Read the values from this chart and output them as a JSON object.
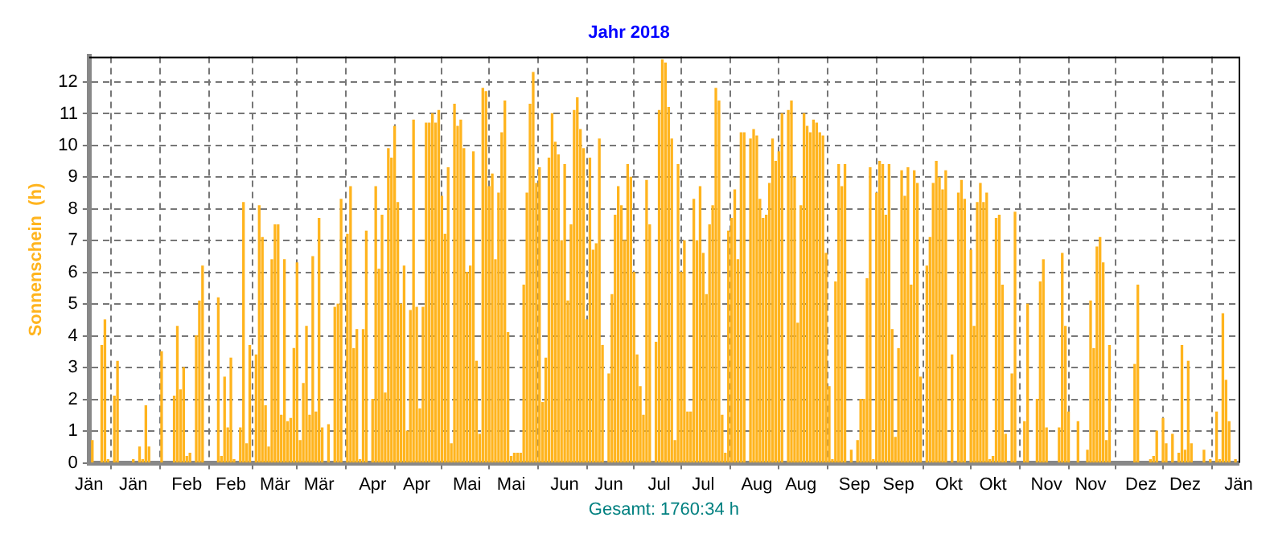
{
  "chart_data": {
    "type": "bar",
    "title": "Jahr 2018",
    "ylabel": "Sonnenschein  (h)",
    "annotations": [
      "Gesamt: 1760:34 h"
    ],
    "x": [
      "2018-01-02",
      "2018-01-05",
      "2018-01-06",
      "2018-01-07",
      "2018-01-09",
      "2018-01-10",
      "2018-01-15",
      "2018-01-17",
      "2018-01-18",
      "2018-01-19",
      "2018-01-20",
      "2018-01-24",
      "2018-01-28",
      "2018-01-29",
      "2018-01-30",
      "2018-01-31",
      "2018-02-01",
      "2018-02-02",
      "2018-02-04",
      "2018-02-05",
      "2018-02-06",
      "2018-02-11",
      "2018-02-12",
      "2018-02-13",
      "2018-02-14",
      "2018-02-15",
      "2018-02-16",
      "2018-02-18",
      "2018-02-19",
      "2018-02-20",
      "2018-02-21",
      "2018-02-23",
      "2018-02-24",
      "2018-02-25",
      "2018-02-26",
      "2018-02-27",
      "2018-02-28",
      "2018-03-01",
      "2018-03-02",
      "2018-03-03",
      "2018-03-04",
      "2018-03-05",
      "2018-03-06",
      "2018-03-07",
      "2018-03-08",
      "2018-03-09",
      "2018-03-10",
      "2018-03-11",
      "2018-03-12",
      "2018-03-13",
      "2018-03-14",
      "2018-03-15",
      "2018-03-16",
      "2018-03-18",
      "2018-03-20",
      "2018-03-21",
      "2018-03-22",
      "2018-03-24",
      "2018-03-25",
      "2018-03-26",
      "2018-03-27",
      "2018-03-28",
      "2018-03-29",
      "2018-03-30",
      "2018-04-01",
      "2018-04-02",
      "2018-04-03",
      "2018-04-04",
      "2018-04-05",
      "2018-04-06",
      "2018-04-07",
      "2018-04-08",
      "2018-04-09",
      "2018-04-10",
      "2018-04-11",
      "2018-04-12",
      "2018-04-13",
      "2018-04-14",
      "2018-04-15",
      "2018-04-16",
      "2018-04-17",
      "2018-04-18",
      "2018-04-19",
      "2018-04-20",
      "2018-04-21",
      "2018-04-22",
      "2018-04-23",
      "2018-04-24",
      "2018-04-25",
      "2018-04-26",
      "2018-04-27",
      "2018-04-28",
      "2018-04-29",
      "2018-04-30",
      "2018-05-01",
      "2018-05-02",
      "2018-05-03",
      "2018-05-04",
      "2018-05-05",
      "2018-05-06",
      "2018-05-07",
      "2018-05-08",
      "2018-05-09",
      "2018-05-10",
      "2018-05-11",
      "2018-05-12",
      "2018-05-13",
      "2018-05-14",
      "2018-05-15",
      "2018-05-16",
      "2018-05-17",
      "2018-05-18",
      "2018-05-19",
      "2018-05-20",
      "2018-05-21",
      "2018-05-22",
      "2018-05-23",
      "2018-05-24",
      "2018-05-25",
      "2018-05-26",
      "2018-05-27",
      "2018-05-28",
      "2018-05-29",
      "2018-05-30",
      "2018-05-31",
      "2018-06-01",
      "2018-06-02",
      "2018-06-03",
      "2018-06-04",
      "2018-06-05",
      "2018-06-06",
      "2018-06-07",
      "2018-06-08",
      "2018-06-09",
      "2018-06-10",
      "2018-06-11",
      "2018-06-12",
      "2018-06-13",
      "2018-06-15",
      "2018-06-16",
      "2018-06-17",
      "2018-06-18",
      "2018-06-19",
      "2018-06-20",
      "2018-06-21",
      "2018-06-22",
      "2018-06-23",
      "2018-06-24",
      "2018-06-25",
      "2018-06-26",
      "2018-06-27",
      "2018-06-28",
      "2018-06-30",
      "2018-07-01",
      "2018-07-02",
      "2018-07-03",
      "2018-07-04",
      "2018-07-05",
      "2018-07-06",
      "2018-07-07",
      "2018-07-08",
      "2018-07-09",
      "2018-07-10",
      "2018-07-11",
      "2018-07-12",
      "2018-07-13",
      "2018-07-14",
      "2018-07-15",
      "2018-07-16",
      "2018-07-17",
      "2018-07-18",
      "2018-07-19",
      "2018-07-20",
      "2018-07-21",
      "2018-07-22",
      "2018-07-23",
      "2018-07-24",
      "2018-07-25",
      "2018-07-26",
      "2018-07-27",
      "2018-07-28",
      "2018-07-30",
      "2018-07-31",
      "2018-08-01",
      "2018-08-02",
      "2018-08-03",
      "2018-08-04",
      "2018-08-05",
      "2018-08-06",
      "2018-08-07",
      "2018-08-08",
      "2018-08-09",
      "2018-08-11",
      "2018-08-12",
      "2018-08-13",
      "2018-08-14",
      "2018-08-15",
      "2018-08-16",
      "2018-08-17",
      "2018-08-18",
      "2018-08-19",
      "2018-08-20",
      "2018-08-21",
      "2018-08-22",
      "2018-08-23",
      "2018-08-24",
      "2018-08-25",
      "2018-08-26",
      "2018-08-27",
      "2018-08-28",
      "2018-08-29",
      "2018-08-31",
      "2018-09-02",
      "2018-09-03",
      "2018-09-04",
      "2018-09-05",
      "2018-09-06",
      "2018-09-07",
      "2018-09-08",
      "2018-09-09",
      "2018-09-10",
      "2018-09-11",
      "2018-09-12",
      "2018-09-13",
      "2018-09-14",
      "2018-09-15",
      "2018-09-16",
      "2018-09-17",
      "2018-09-18",
      "2018-09-19",
      "2018-09-20",
      "2018-09-21",
      "2018-09-22",
      "2018-09-24",
      "2018-09-25",
      "2018-09-26",
      "2018-09-27",
      "2018-09-28",
      "2018-09-29",
      "2018-09-30",
      "2018-10-02",
      "2018-10-04",
      "2018-10-05",
      "2018-10-06",
      "2018-10-08",
      "2018-10-09",
      "2018-10-10",
      "2018-10-11",
      "2018-10-12",
      "2018-10-13",
      "2018-10-14",
      "2018-10-15",
      "2018-10-16",
      "2018-10-17",
      "2018-10-18",
      "2018-10-19",
      "2018-10-21",
      "2018-10-22",
      "2018-10-25",
      "2018-10-26",
      "2018-10-29",
      "2018-10-30",
      "2018-10-31",
      "2018-11-01",
      "2018-11-05",
      "2018-11-06",
      "2018-11-07",
      "2018-11-08",
      "2018-11-11",
      "2018-11-14",
      "2018-11-15",
      "2018-11-16",
      "2018-11-17",
      "2018-11-18",
      "2018-11-19",
      "2018-11-20",
      "2018-11-21",
      "2018-11-29",
      "2018-11-30",
      "2018-12-04",
      "2018-12-05",
      "2018-12-06",
      "2018-12-08",
      "2018-12-09",
      "2018-12-11",
      "2018-12-13",
      "2018-12-14",
      "2018-12-15",
      "2018-12-16",
      "2018-12-17",
      "2018-12-21",
      "2018-12-23",
      "2018-12-25",
      "2018-12-26",
      "2018-12-27",
      "2018-12-28",
      "2018-12-29",
      "2018-12-31"
    ],
    "values": [
      0.7,
      3.7,
      4.5,
      0.1,
      2.1,
      3.2,
      0.1,
      0.5,
      0.1,
      1.8,
      0.5,
      3.5,
      2.1,
      4.3,
      2.3,
      3.0,
      0.2,
      0.3,
      4.0,
      5.1,
      6.2,
      5.2,
      0.2,
      2.7,
      1.1,
      3.3,
      0.1,
      1.1,
      8.2,
      0.6,
      3.7,
      3.4,
      8.1,
      7.1,
      1.8,
      0.5,
      6.4,
      7.5,
      7.5,
      1.5,
      6.4,
      1.3,
      1.4,
      3.6,
      6.3,
      0.7,
      2.5,
      4.3,
      1.5,
      6.5,
      1.6,
      7.7,
      1.1,
      1.2,
      4.9,
      5.0,
      8.3,
      7.2,
      8.7,
      3.6,
      4.2,
      0.1,
      4.2,
      7.3,
      2.0,
      8.7,
      6.1,
      7.8,
      2.2,
      9.9,
      9.6,
      10.6,
      8.2,
      5.0,
      6.2,
      1.0,
      4.8,
      10.8,
      4.9,
      1.7,
      4.9,
      10.7,
      10.7,
      11.0,
      10.7,
      11.1,
      8.4,
      7.2,
      9.3,
      0.6,
      11.3,
      10.6,
      10.8,
      9.9,
      6.0,
      6.2,
      9.8,
      3.2,
      0.9,
      11.8,
      11.7,
      8.7,
      9.1,
      6.4,
      8.5,
      10.4,
      11.4,
      4.1,
      0.2,
      0.3,
      0.3,
      0.3,
      5.6,
      8.5,
      11.3,
      12.3,
      8.8,
      9.3,
      1.9,
      3.3,
      9.6,
      11.0,
      10.1,
      9.7,
      7.0,
      9.4,
      5.1,
      7.5,
      11.1,
      11.5,
      10.5,
      9.9,
      4.5,
      9.6,
      6.7,
      6.9,
      10.2,
      3.7,
      2.8,
      5.3,
      7.8,
      8.7,
      8.1,
      7.0,
      9.4,
      9.0,
      6.0,
      3.4,
      2.4,
      1.5,
      8.9,
      7.5,
      3.8,
      11.1,
      12.7,
      12.6,
      11.2,
      10.2,
      0.7,
      9.4,
      6.0,
      7.0,
      1.6,
      1.6,
      8.3,
      7.0,
      8.7,
      6.6,
      5.3,
      7.5,
      8.1,
      11.8,
      11.4,
      1.5,
      0.3,
      7.3,
      7.7,
      8.6,
      6.4,
      10.4,
      10.4,
      10.2,
      10.5,
      10.3,
      8.3,
      7.7,
      7.8,
      8.8,
      10.2,
      9.5,
      9.8,
      11.0,
      11.1,
      11.4,
      9.0,
      4.4,
      8.1,
      11.0,
      10.6,
      10.4,
      10.8,
      10.7,
      10.4,
      10.3,
      6.6,
      2.4,
      0.1,
      5.7,
      9.4,
      8.7,
      9.4,
      0.4,
      0.7,
      2.0,
      2.0,
      5.8,
      9.3,
      0.1,
      8.5,
      9.5,
      9.4,
      7.8,
      9.4,
      4.2,
      0.8,
      3.6,
      9.2,
      8.4,
      9.3,
      5.6,
      9.2,
      8.8,
      2.7,
      6.2,
      7.1,
      8.8,
      9.5,
      9.0,
      8.6,
      9.2,
      3.4,
      8.5,
      8.9,
      8.3,
      6.7,
      4.3,
      8.2,
      8.8,
      8.2,
      8.5,
      0.1,
      0.2,
      7.7,
      7.8,
      5.6,
      0.9,
      2.8,
      7.9,
      1.3,
      5.0,
      2.0,
      5.7,
      6.4,
      1.1,
      1.1,
      6.6,
      4.3,
      1.6,
      1.3,
      0.4,
      5.1,
      3.6,
      6.8,
      7.1,
      6.3,
      0.7,
      3.7,
      3.1,
      5.6,
      0.1,
      0.2,
      1.0,
      1.4,
      0.6,
      0.9,
      0.3,
      3.7,
      0.4,
      3.2,
      0.6,
      0.4,
      0.1,
      1.6,
      0.1,
      4.7,
      2.6,
      1.3,
      0.1
    ],
    "color": "#ffb41e",
    "xlim": [
      "2018-01-01",
      "2019-01-01"
    ],
    "xticks": [
      {
        "value": "2018-01-01",
        "label": "Jän"
      },
      {
        "value": "2018-01-15",
        "label": "Jän"
      },
      {
        "value": "2018-02-01",
        "label": "Feb"
      },
      {
        "value": "2018-02-15",
        "label": "Feb"
      },
      {
        "value": "2018-03-01",
        "label": "Mär"
      },
      {
        "value": "2018-03-15",
        "label": "Mär"
      },
      {
        "value": "2018-04-01",
        "label": "Apr"
      },
      {
        "value": "2018-04-15",
        "label": "Apr"
      },
      {
        "value": "2018-05-01",
        "label": "Mai"
      },
      {
        "value": "2018-05-15",
        "label": "Mai"
      },
      {
        "value": "2018-06-01",
        "label": "Jun"
      },
      {
        "value": "2018-06-15",
        "label": "Jun"
      },
      {
        "value": "2018-07-01",
        "label": "Jul"
      },
      {
        "value": "2018-07-15",
        "label": "Jul"
      },
      {
        "value": "2018-08-01",
        "label": "Aug"
      },
      {
        "value": "2018-08-15",
        "label": "Aug"
      },
      {
        "value": "2018-09-01",
        "label": "Sep"
      },
      {
        "value": "2018-09-15",
        "label": "Sep"
      },
      {
        "value": "2018-10-01",
        "label": "Okt"
      },
      {
        "value": "2018-10-15",
        "label": "Okt"
      },
      {
        "value": "2018-11-01",
        "label": "Nov"
      },
      {
        "value": "2018-11-15",
        "label": "Nov"
      },
      {
        "value": "2018-12-01",
        "label": "Dez"
      },
      {
        "value": "2018-12-15",
        "label": "Dez"
      },
      {
        "value": "2019-01-01",
        "label": "Jän"
      }
    ],
    "ylim": [
      0,
      12.8
    ],
    "yticks": [
      0,
      1,
      2,
      3,
      4,
      5,
      6,
      7,
      8,
      9,
      10,
      11,
      12
    ],
    "grid": true
  }
}
